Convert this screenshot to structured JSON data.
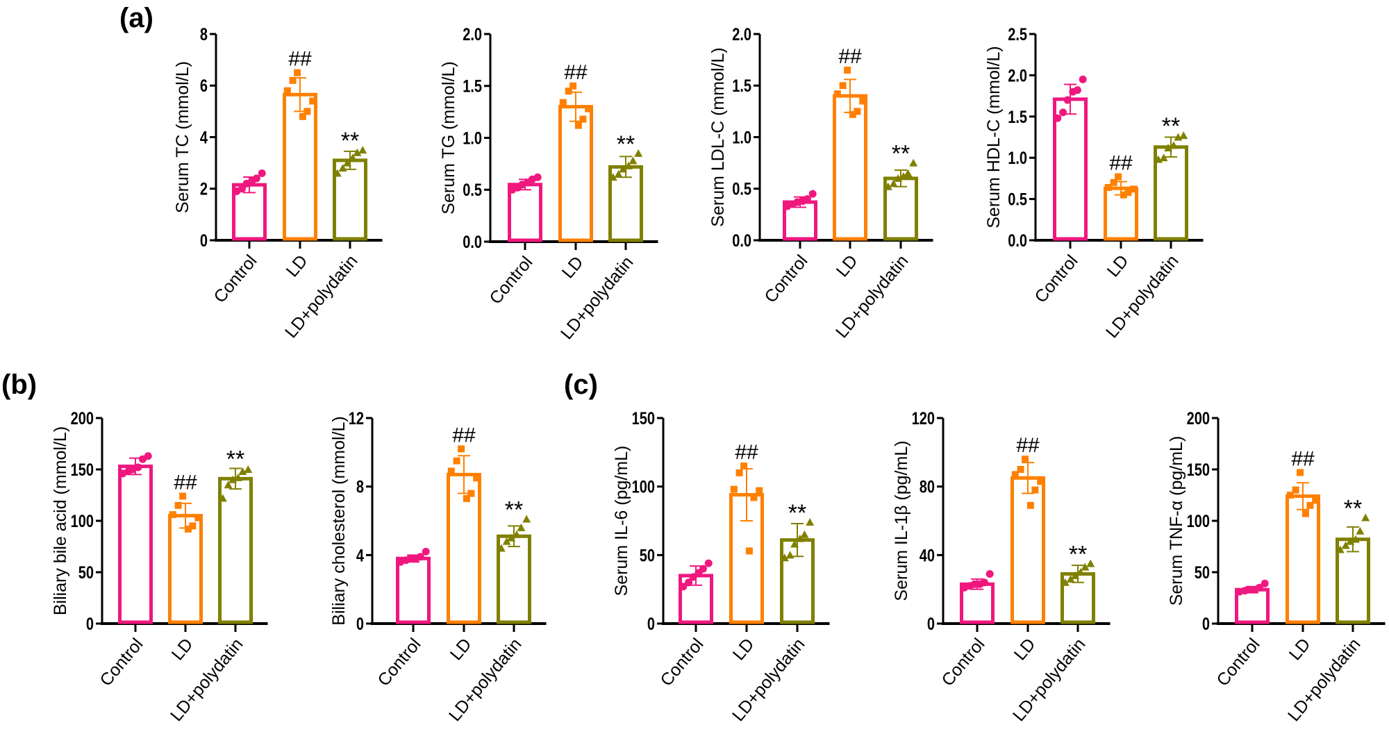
{
  "panel_labels": [
    "(a)",
    "(b)",
    "(c)"
  ],
  "colors": {
    "Control": "#f0177f",
    "LD": "#ff8000",
    "LD+polydatin": "#808000",
    "axis": "#000000"
  },
  "markers": {
    "Control": "circle",
    "LD": "square",
    "LD+polydatin": "triangle"
  },
  "chart_data": [
    {
      "type": "bar",
      "panel": "(a)",
      "ylabel": "Serum TC (mmol/L)",
      "ylim": [
        0,
        8
      ],
      "yticks": [
        "0",
        "2",
        "4",
        "6",
        "8"
      ],
      "categories": [
        "Control",
        "LD",
        "LD+polydatin"
      ],
      "values": [
        2.15,
        5.65,
        3.1
      ],
      "sd": [
        0.3,
        0.65,
        0.35
      ],
      "annotations": [
        "",
        "##",
        "**"
      ],
      "points": [
        [
          1.9,
          2.0,
          2.2,
          2.3,
          2.4,
          2.6
        ],
        [
          4.8,
          5.0,
          5.4,
          5.8,
          6.2,
          6.5
        ],
        [
          2.6,
          2.8,
          3.0,
          3.2,
          3.4,
          3.5
        ]
      ]
    },
    {
      "type": "bar",
      "panel": "(a)",
      "ylabel": "Serum TG (mmol/L)",
      "ylim": [
        0,
        2.0
      ],
      "yticks": [
        "0.0",
        "0.5",
        "1.0",
        "1.5",
        "2.0"
      ],
      "categories": [
        "Control",
        "LD",
        "LD+polydatin"
      ],
      "values": [
        0.55,
        1.3,
        0.72
      ],
      "sd": [
        0.05,
        0.14,
        0.1
      ],
      "annotations": [
        "",
        "##",
        "**"
      ],
      "points": [
        [
          0.5,
          0.52,
          0.55,
          0.57,
          0.6,
          0.62
        ],
        [
          1.12,
          1.18,
          1.28,
          1.34,
          1.45,
          1.5
        ],
        [
          0.62,
          0.65,
          0.7,
          0.73,
          0.78,
          0.85
        ]
      ]
    },
    {
      "type": "bar",
      "panel": "(a)",
      "ylabel": "Serum LDL-C (mmol/L)",
      "ylim": [
        0,
        2.0
      ],
      "yticks": [
        "0.0",
        "0.5",
        "1.0",
        "1.5",
        "2.0"
      ],
      "categories": [
        "Control",
        "LD",
        "LD+polydatin"
      ],
      "values": [
        0.37,
        1.4,
        0.6
      ],
      "sd": [
        0.05,
        0.16,
        0.08
      ],
      "annotations": [
        "",
        "##",
        "**"
      ],
      "points": [
        [
          0.33,
          0.35,
          0.37,
          0.38,
          0.4,
          0.45
        ],
        [
          1.22,
          1.25,
          1.35,
          1.42,
          1.5,
          1.65
        ],
        [
          0.52,
          0.55,
          0.6,
          0.62,
          0.65,
          0.75
        ]
      ]
    },
    {
      "type": "bar",
      "panel": "(a)",
      "ylabel": "Serum HDL-C (mmol/L)",
      "ylim": [
        0,
        2.5
      ],
      "yticks": [
        "0.0",
        "0.5",
        "1.0",
        "1.5",
        "2.0",
        "2.5"
      ],
      "categories": [
        "Control",
        "LD",
        "LD+polydatin"
      ],
      "values": [
        1.71,
        0.63,
        1.13
      ],
      "sd": [
        0.18,
        0.08,
        0.12
      ],
      "annotations": [
        "",
        "##",
        "**"
      ],
      "points": [
        [
          1.48,
          1.55,
          1.7,
          1.8,
          1.82,
          1.95
        ],
        [
          0.55,
          0.58,
          0.62,
          0.64,
          0.7,
          0.77
        ],
        [
          0.98,
          1.0,
          1.12,
          1.15,
          1.25,
          1.27
        ]
      ]
    },
    {
      "type": "bar",
      "panel": "(b)",
      "ylabel": "Biliary bile acid (mmol/L)",
      "ylim": [
        0,
        200
      ],
      "yticks": [
        "0",
        "50",
        "100",
        "150",
        "200"
      ],
      "categories": [
        "Control",
        "LD",
        "LD+polydatin"
      ],
      "values": [
        153,
        105,
        141
      ],
      "sd": [
        8,
        12,
        10
      ],
      "annotations": [
        "",
        "##",
        "**"
      ],
      "points": [
        [
          146,
          148,
          150,
          152,
          160,
          163
        ],
        [
          92,
          95,
          103,
          106,
          115,
          124
        ],
        [
          122,
          135,
          140,
          142,
          148,
          150
        ]
      ]
    },
    {
      "type": "bar",
      "panel": "(b)",
      "ylabel": "Biliary cholesterol (mmol/L)",
      "ylim": [
        0,
        12
      ],
      "yticks": [
        "0",
        "4",
        "8",
        "12"
      ],
      "categories": [
        "Control",
        "LD",
        "LD+polydatin"
      ],
      "values": [
        3.8,
        8.7,
        5.1
      ],
      "sd": [
        0.2,
        1.1,
        0.6
      ],
      "annotations": [
        "",
        "##",
        "**"
      ],
      "points": [
        [
          3.6,
          3.7,
          3.8,
          3.8,
          3.9,
          4.2
        ],
        [
          7.3,
          7.6,
          8.5,
          8.9,
          9.5,
          10.2
        ],
        [
          4.4,
          4.8,
          5.0,
          5.2,
          5.6,
          6.1
        ]
      ]
    },
    {
      "type": "bar",
      "panel": "(c)",
      "ylabel": "Serum IL-6 (pg/mL)",
      "ylim": [
        0,
        150
      ],
      "yticks": [
        "0",
        "50",
        "100",
        "150"
      ],
      "categories": [
        "Control",
        "LD",
        "LD+polydatin"
      ],
      "values": [
        35,
        94,
        61
      ],
      "sd": [
        7,
        19,
        12
      ],
      "annotations": [
        "",
        "##",
        "**"
      ],
      "points": [
        [
          27,
          30,
          34,
          37,
          40,
          44
        ],
        [
          53,
          92,
          97,
          98,
          110,
          115
        ],
        [
          48,
          50,
          58,
          62,
          65,
          74
        ]
      ]
    },
    {
      "type": "bar",
      "panel": "(c)",
      "ylabel": "Serum IL-1β (pg/mL)",
      "ylim": [
        0,
        120
      ],
      "yticks": [
        "0",
        "40",
        "80",
        "120"
      ],
      "categories": [
        "Control",
        "LD",
        "LD+polydatin"
      ],
      "values": [
        23,
        85,
        29
      ],
      "sd": [
        3,
        9,
        5
      ],
      "annotations": [
        "",
        "##",
        "**"
      ],
      "points": [
        [
          21,
          22,
          23,
          23,
          24,
          29
        ],
        [
          69,
          78,
          83,
          87,
          90,
          96
        ],
        [
          24,
          26,
          28,
          30,
          33,
          35
        ]
      ]
    },
    {
      "type": "bar",
      "panel": "(c)",
      "ylabel": "Serum TNF-α (pg/mL)",
      "ylim": [
        0,
        200
      ],
      "yticks": [
        "0",
        "50",
        "100",
        "150",
        "200"
      ],
      "categories": [
        "Control",
        "LD",
        "LD+polydatin"
      ],
      "values": [
        33,
        124,
        82
      ],
      "sd": [
        3,
        13,
        12
      ],
      "annotations": [
        "",
        "##",
        "**"
      ],
      "points": [
        [
          31,
          32,
          33,
          33,
          35,
          39
        ],
        [
          107,
          115,
          120,
          125,
          130,
          147
        ],
        [
          72,
          76,
          80,
          82,
          90,
          103
        ]
      ]
    }
  ]
}
